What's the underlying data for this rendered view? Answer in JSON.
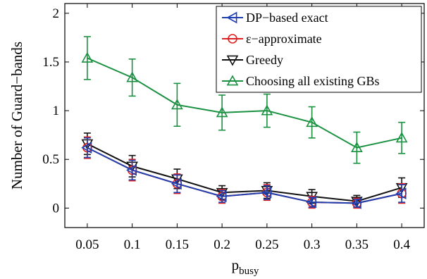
{
  "chart_data": {
    "type": "line",
    "x": [
      0.05,
      0.1,
      0.15,
      0.2,
      0.25,
      0.3,
      0.35,
      0.4
    ],
    "x_tick_labels": [
      "0.05",
      "0.1",
      "0.15",
      "0.2",
      "0.25",
      "0.3",
      "0.35",
      "0.4"
    ],
    "y_tick_labels": [
      "0",
      "0.5",
      "1",
      "1.5",
      "2"
    ],
    "y_ticks": [
      0,
      0.5,
      1,
      1.5,
      2
    ],
    "xlim": [
      0.025,
      0.425
    ],
    "ylim": [
      -0.2,
      2.1
    ],
    "ylabel": "Number of Guard−bands",
    "xlabel": {
      "main": "p",
      "sub": "busy"
    },
    "grid": false,
    "legend_position": "top-right",
    "series": [
      {
        "name": "DP−based exact",
        "color": "#1f3fb0",
        "marker": "triangle-left",
        "values": [
          0.62,
          0.39,
          0.25,
          0.12,
          0.16,
          0.06,
          0.05,
          0.15
        ],
        "errors": [
          0.1,
          0.1,
          0.09,
          0.06,
          0.07,
          0.05,
          0.04,
          0.09
        ]
      },
      {
        "name": "ε−approximate",
        "color": "#e02020",
        "marker": "circle",
        "values": [
          0.62,
          0.39,
          0.25,
          0.12,
          0.16,
          0.06,
          0.05,
          0.15
        ],
        "errors": [
          0.11,
          0.11,
          0.1,
          0.07,
          0.08,
          0.06,
          0.05,
          0.1
        ]
      },
      {
        "name": "Greedy",
        "color": "#111111",
        "marker": "triangle-down",
        "values": [
          0.66,
          0.43,
          0.3,
          0.16,
          0.18,
          0.12,
          0.07,
          0.21
        ],
        "errors": [
          0.11,
          0.11,
          0.1,
          0.07,
          0.08,
          0.07,
          0.06,
          0.1
        ]
      },
      {
        "name": "Choosing all existing GBs",
        "color": "#1a9141",
        "marker": "triangle-up",
        "values": [
          1.54,
          1.34,
          1.06,
          0.98,
          1.0,
          0.88,
          0.62,
          0.72
        ],
        "errors": [
          0.22,
          0.19,
          0.22,
          0.18,
          0.17,
          0.16,
          0.16,
          0.16
        ]
      }
    ]
  }
}
